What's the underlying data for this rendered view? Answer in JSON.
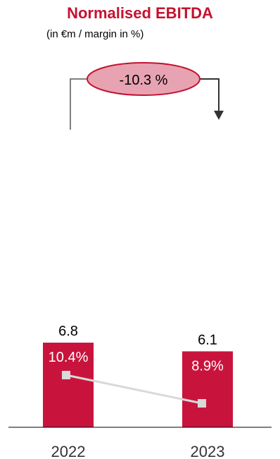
{
  "chart_data": {
    "type": "bar",
    "title": "Normalised EBITDA",
    "subtitle": "(in €m / margin in %)",
    "categories": [
      "2022",
      "2023"
    ],
    "values": [
      6.8,
      6.1
    ],
    "value_labels": [
      "6.8",
      "6.1"
    ],
    "margin": {
      "values": [
        10.4,
        8.9
      ],
      "labels": [
        "10.4%",
        "8.9%"
      ]
    },
    "change": {
      "value": -10.3,
      "label": "-10.3 %"
    },
    "colors": {
      "title": "#c41230",
      "bar": "#c8143c",
      "bar_label": "#ffffff",
      "margin_line": "#d9d9d9",
      "ellipse_fill": "#e8a3b2",
      "ellipse_stroke": "#c41230",
      "arrow": "#333333"
    },
    "ylim": [
      0,
      15
    ],
    "legend": "none",
    "grid": false
  }
}
